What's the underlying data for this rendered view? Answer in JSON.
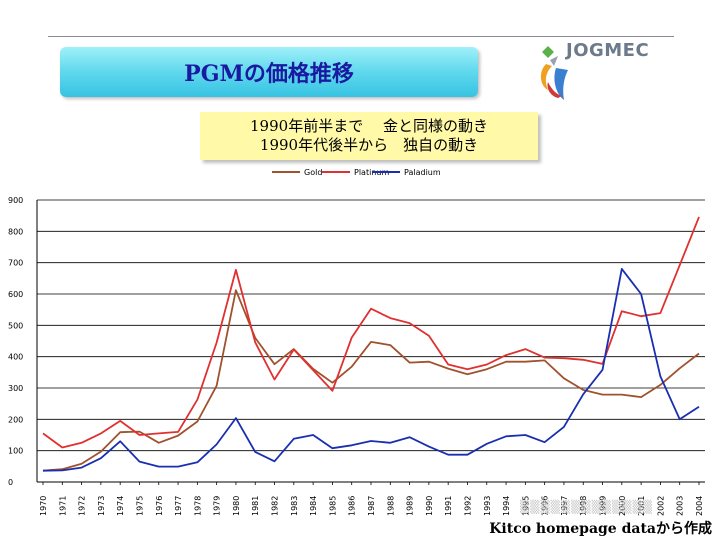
{
  "slide": {
    "title": "PGMの価格推移",
    "logo_text": "JOGMEC",
    "note_line1": "1990年前半まで　 金と同様の動き",
    "note_line2": "1990年代後半から　独自の動き",
    "source": "Kitco homepage dataから作成"
  },
  "colors": {
    "gold": "#a0522d",
    "platinum": "#e03030",
    "palladium": "#1a2fb0",
    "title_text": "#1a1aa0"
  },
  "chart_data": {
    "type": "line",
    "categories": [
      "1970",
      "1971",
      "1972",
      "1973",
      "1974",
      "1975",
      "1976",
      "1977",
      "1978",
      "1979",
      "1980",
      "1981",
      "1982",
      "1983",
      "1984",
      "1985",
      "1986",
      "1987",
      "1988",
      "1989",
      "1990",
      "1991",
      "1992",
      "1993",
      "1994",
      "1995",
      "1996",
      "1997",
      "1998",
      "1999",
      "2000",
      "2001",
      "2002",
      "2003",
      "2004"
    ],
    "ylim": [
      0,
      900
    ],
    "yticks": [
      0,
      100,
      200,
      300,
      400,
      500,
      600,
      700,
      800,
      900
    ],
    "legend_position": "top-center",
    "series": [
      {
        "name": "Gold",
        "color": "#a0522d",
        "values": [
          36,
          41,
          58,
          97,
          159,
          161,
          125,
          148,
          193,
          307,
          612,
          460,
          376,
          424,
          361,
          317,
          368,
          447,
          437,
          381,
          384,
          362,
          344,
          360,
          384,
          384,
          388,
          331,
          294,
          279,
          279,
          271,
          310,
          363,
          410
        ]
      },
      {
        "name": "Platinum",
        "color": "#e03030",
        "values": [
          155,
          110,
          125,
          155,
          195,
          150,
          155,
          160,
          263,
          445,
          677,
          446,
          327,
          423,
          357,
          291,
          461,
          553,
          523,
          507,
          467,
          375,
          360,
          375,
          405,
          424,
          397,
          395,
          390,
          377,
          545,
          529,
          539,
          692,
          846
        ]
      },
      {
        "name": "Paladium",
        "color": "#1a2fb0",
        "values": [
          36,
          37,
          46,
          76,
          130,
          65,
          49,
          49,
          63,
          120,
          204,
          96,
          66,
          138,
          150,
          108,
          117,
          131,
          125,
          143,
          113,
          87,
          87,
          122,
          146,
          150,
          127,
          176,
          280,
          358,
          680,
          600,
          337,
          200,
          240
        ]
      }
    ]
  }
}
